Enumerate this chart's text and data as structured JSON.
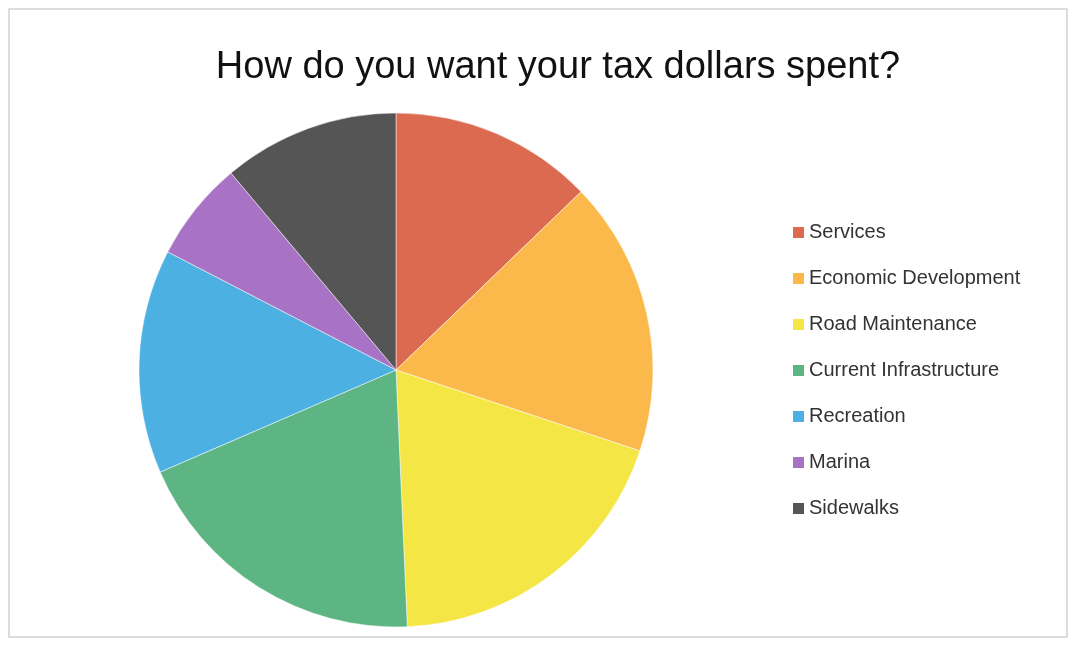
{
  "chart_data": {
    "type": "pie",
    "title": "How do you want your tax dollars spent?",
    "categories": [
      "Services",
      "Economic Development",
      "Road Maintenance",
      "Current Infrastructure",
      "Recreation",
      "Marina",
      "Sidewalks"
    ],
    "values": [
      12.8,
      17.3,
      19.2,
      19.2,
      14.1,
      6.3,
      11.1
    ],
    "colors": [
      "#dc6a50",
      "#fbb94c",
      "#f4e645",
      "#5db584",
      "#4cb0e2",
      "#a873c4",
      "#555555"
    ],
    "legend": "right"
  }
}
